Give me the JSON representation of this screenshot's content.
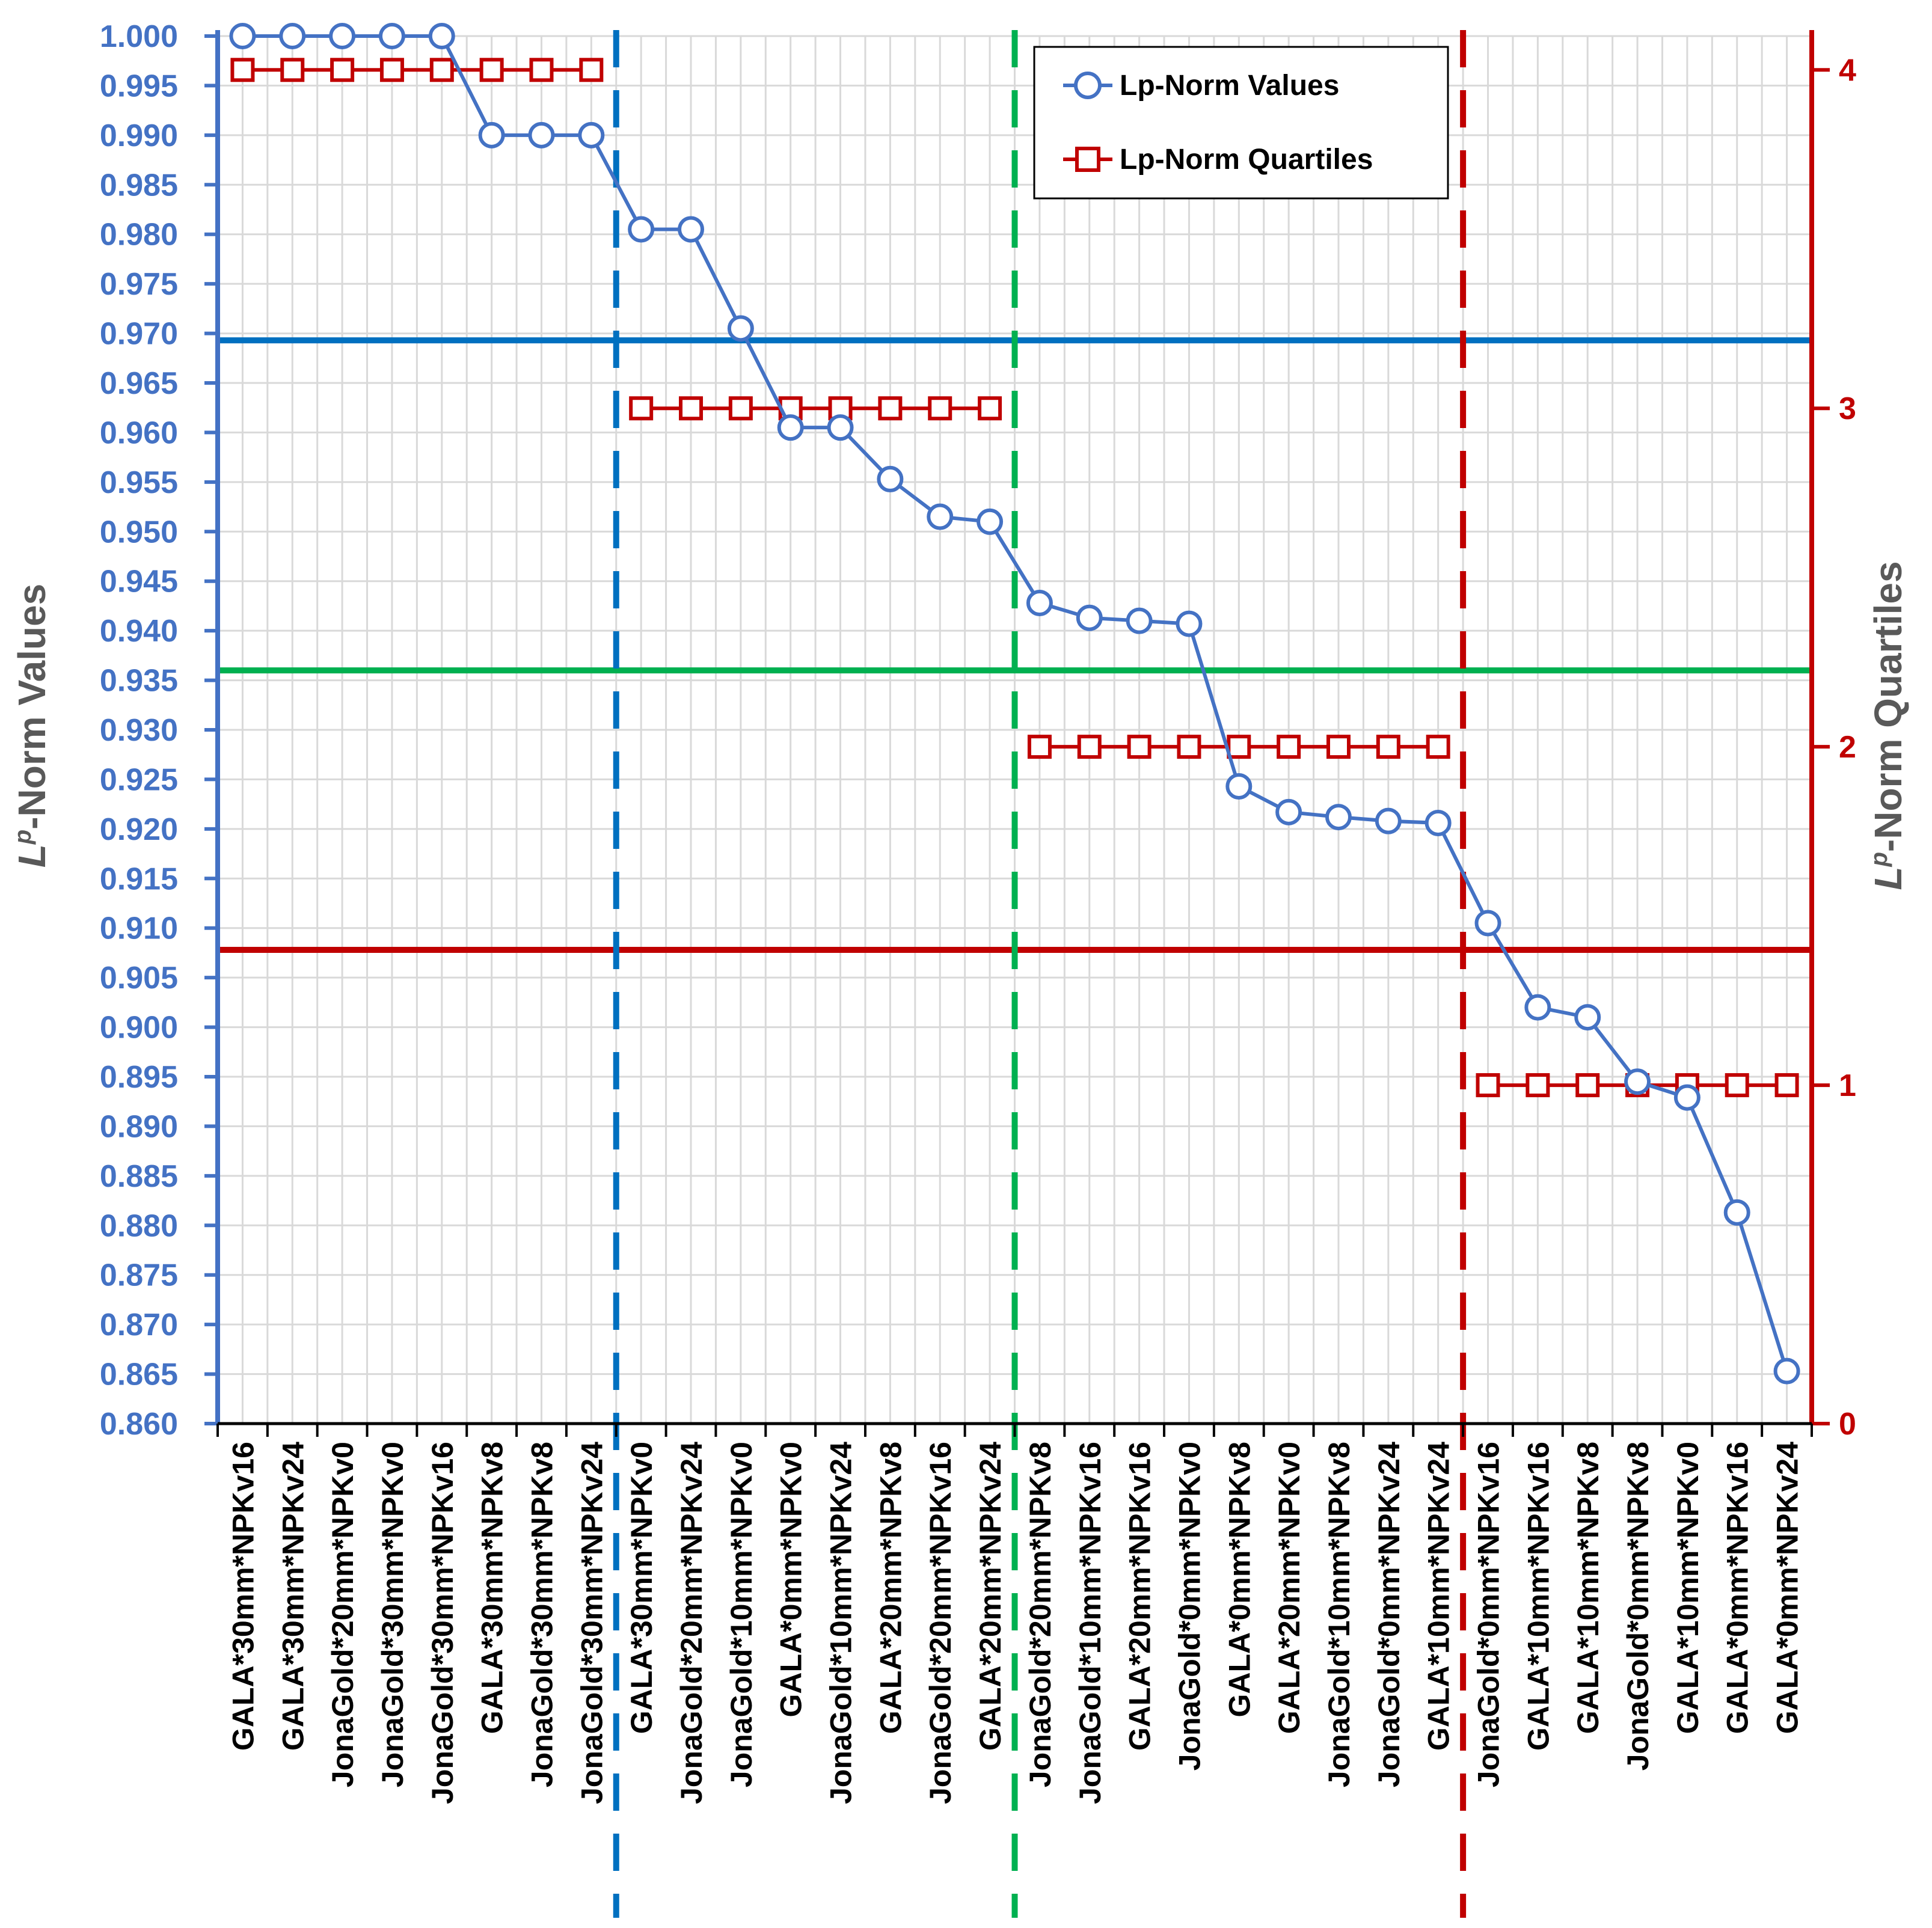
{
  "chart_data": {
    "type": "line",
    "title": "",
    "categories": [
      "GALA*30mm*NPKv16",
      "GALA*30mm*NPKv24",
      "JonaGold*20mm*NPKv0",
      "JonaGold*30mm*NPKv0",
      "JonaGold*30mm*NPKv16",
      "GALA*30mm*NPKv8",
      "JonaGold*30mm*NPKv8",
      "JonaGold*30mm*NPKv24",
      "GALA*30mm*NPKv0",
      "JonaGold*20mm*NPKv24",
      "JonaGold*10mm*NPKv0",
      "GALA*0mm*NPKv0",
      "JonaGold*10mm*NPKv24",
      "GALA*20mm*NPKv8",
      "JonaGold*20mm*NPKv16",
      "GALA*20mm*NPKv24",
      "JonaGold*20mm*NPKv8",
      "JonaGold*10mm*NPKv16",
      "GALA*20mm*NPKv16",
      "JonaGold*0mm*NPKv0",
      "GALA*0mm*NPKv8",
      "GALA*20mm*NPKv0",
      "JonaGold*10mm*NPKv8",
      "JonaGold*0mm*NPKv24",
      "GALA*10mm*NPKv24",
      "JonaGold*0mm*NPKv16",
      "GALA*10mm*NPKv16",
      "GALA*10mm*NPKv8",
      "JonaGold*0mm*NPKv8",
      "GALA*10mm*NPKv0",
      "GALA*0mm*NPKv16",
      "GALA*0mm*NPKv24"
    ],
    "series": [
      {
        "name": "Lp-Norm Values",
        "axis": "left",
        "color": "#4472C4",
        "marker": "circle",
        "values": [
          1.0,
          1.0,
          1.0,
          1.0,
          1.0,
          0.99,
          0.99,
          0.99,
          0.9805,
          0.9805,
          0.9705,
          0.9605,
          0.9605,
          0.9553,
          0.9515,
          0.951,
          0.9428,
          0.9413,
          0.941,
          0.9407,
          0.9243,
          0.9217,
          0.9212,
          0.9208,
          0.9206,
          0.9105,
          0.902,
          0.901,
          0.8945,
          0.8929,
          0.8813,
          0.8653
        ]
      },
      {
        "name": "Lp-Norm Quartiles",
        "axis": "right",
        "color": "#C00000",
        "marker": "square",
        "values": [
          4,
          4,
          4,
          4,
          4,
          4,
          4,
          4,
          3,
          3,
          3,
          3,
          3,
          3,
          3,
          3,
          2,
          2,
          2,
          2,
          2,
          2,
          2,
          2,
          2,
          1,
          1,
          1,
          1,
          1,
          1,
          1
        ]
      }
    ],
    "y_left": {
      "label_main": "L",
      "label_sup": "p",
      "label_rest": "-Norm Values",
      "ylim": [
        0.86,
        1.0
      ],
      "tick_step": 0.005,
      "color": "#4472C4"
    },
    "y_right": {
      "label_main": "L",
      "label_sup": "p",
      "label_rest": "-Norm Quartiles",
      "ylim": [
        0,
        4.1
      ],
      "ticks": [
        0,
        1,
        2,
        3,
        4
      ],
      "tick_labels": [
        "0",
        "1",
        "2",
        "3",
        "4"
      ],
      "color": "#C00000"
    },
    "reference_lines": [
      {
        "value": 0.9693,
        "color": "#0070C0"
      },
      {
        "value": 0.936,
        "color": "#00B050"
      },
      {
        "value": 0.9078,
        "color": "#C00000"
      }
    ],
    "separator_lines": [
      {
        "after_index": 7,
        "color": "#0070C0"
      },
      {
        "after_index": 15,
        "color": "#00B050"
      },
      {
        "after_index": 24,
        "color": "#C00000"
      }
    ],
    "grid": true,
    "legend_position": "top-right"
  }
}
